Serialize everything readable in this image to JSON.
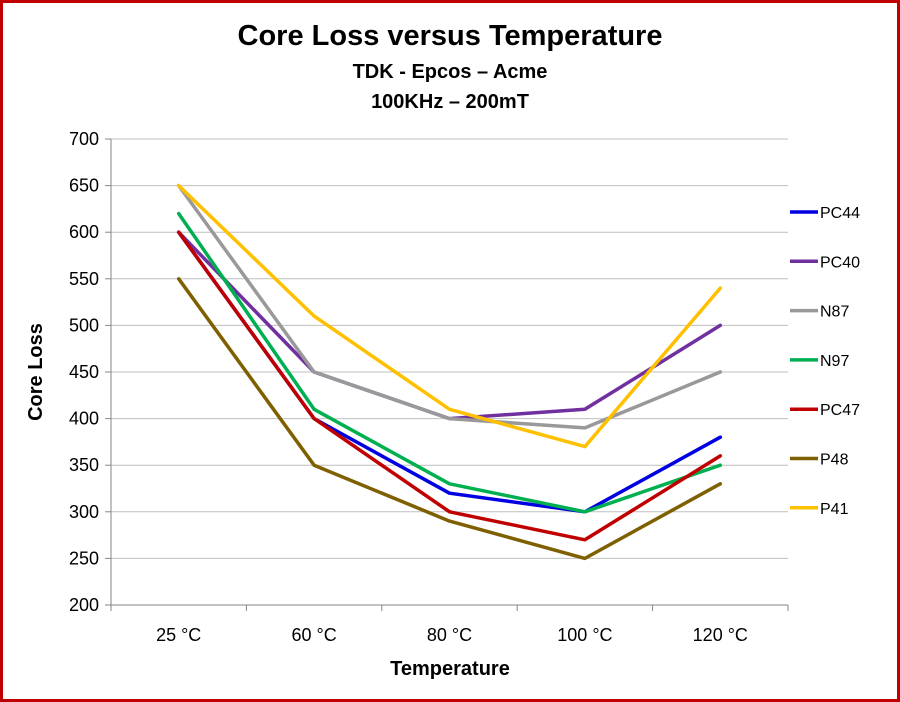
{
  "chart_data": {
    "type": "line",
    "title": "Core Loss versus Temperature",
    "subtitle_lines": [
      "TDK - Epcos – Acme",
      "100KHz – 200mT"
    ],
    "xlabel": "Temperature",
    "ylabel": "Core Loss",
    "categories": [
      "25 °C",
      "60 °C",
      "80 °C",
      "100 °C",
      "120 °C"
    ],
    "ylim": [
      200,
      700
    ],
    "yticks": [
      200,
      250,
      300,
      350,
      400,
      450,
      500,
      550,
      600,
      650,
      700
    ],
    "grid": true,
    "legend_position": "right",
    "series": [
      {
        "name": "PC44",
        "color": "#0000e0",
        "values": [
          600,
          400,
          320,
          300,
          380
        ]
      },
      {
        "name": "PC40",
        "color": "#7030a0",
        "values": [
          600,
          450,
          400,
          410,
          500
        ]
      },
      {
        "name": "N87",
        "color": "#999999",
        "values": [
          650,
          450,
          400,
          390,
          450
        ]
      },
      {
        "name": "N97",
        "color": "#00b050",
        "values": [
          620,
          410,
          330,
          300,
          350
        ]
      },
      {
        "name": "PC47",
        "color": "#c00000",
        "values": [
          600,
          400,
          300,
          270,
          360
        ]
      },
      {
        "name": "P48",
        "color": "#7f6000",
        "values": [
          550,
          350,
          290,
          250,
          330
        ]
      },
      {
        "name": "P41",
        "color": "#ffc000",
        "values": [
          650,
          510,
          410,
          370,
          540
        ]
      }
    ]
  }
}
